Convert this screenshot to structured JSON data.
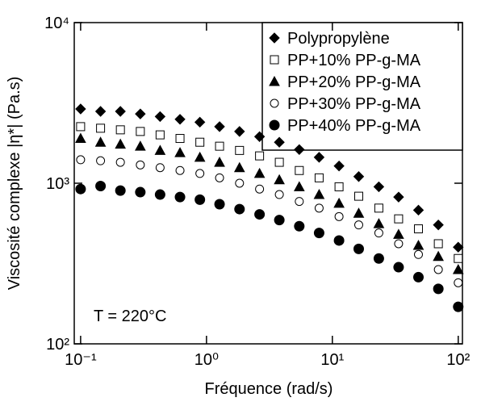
{
  "chart_data": {
    "type": "scatter",
    "x_label": "Fréquence (rad/s)",
    "y_label": "Viscosité complexe |η*| (Pa.s)",
    "annotation": "T = 220°C",
    "log_x": true,
    "log_y": true,
    "legend": "top-right",
    "x": [
      0.1,
      0.144,
      0.207,
      0.298,
      0.428,
      0.616,
      0.886,
      1.27,
      1.83,
      2.64,
      3.79,
      5.46,
      7.85,
      11.3,
      16.2,
      23.4,
      33.6,
      48.3,
      69.5,
      100
    ],
    "xlim": [
      0.089,
      108
    ],
    "ylim": [
      100,
      10000
    ],
    "xticks": [
      {
        "value": 0.1,
        "label": "10⁻¹"
      },
      {
        "value": 1,
        "label": "10⁰"
      },
      {
        "value": 10,
        "label": "10¹"
      },
      {
        "value": 100,
        "label": "10²"
      }
    ],
    "yticks": [
      {
        "value": 100,
        "label": "10²"
      },
      {
        "value": 1000,
        "label": "10³"
      },
      {
        "value": 10000,
        "label": "10⁴"
      }
    ],
    "series": [
      {
        "name": "Polypropylène",
        "color": "#000000",
        "marker": "diamond",
        "filled": true,
        "values": [
          2900,
          2800,
          2800,
          2700,
          2600,
          2500,
          2400,
          2250,
          2100,
          1950,
          1800,
          1620,
          1450,
          1280,
          1100,
          950,
          820,
          680,
          550,
          400
        ]
      },
      {
        "name": "PP+10% PP-g-MA",
        "color": "#000000",
        "marker": "square",
        "filled": false,
        "values": [
          2250,
          2200,
          2150,
          2100,
          2000,
          1900,
          1800,
          1700,
          1600,
          1480,
          1350,
          1200,
          1080,
          950,
          830,
          700,
          600,
          520,
          420,
          340
        ]
      },
      {
        "name": "PP+20% PP-g-MA",
        "color": "#000000",
        "marker": "triangle",
        "filled": true,
        "values": [
          1900,
          1800,
          1750,
          1700,
          1600,
          1550,
          1450,
          1350,
          1250,
          1150,
          1050,
          950,
          850,
          750,
          650,
          560,
          480,
          410,
          350,
          290
        ]
      },
      {
        "name": "PP+30% PP-g-MA",
        "color": "#000000",
        "marker": "circle",
        "filled": false,
        "values": [
          1400,
          1380,
          1350,
          1300,
          1250,
          1200,
          1150,
          1080,
          1000,
          920,
          850,
          770,
          700,
          620,
          550,
          490,
          420,
          360,
          290,
          240
        ]
      },
      {
        "name": "PP+40% PP-g-MA",
        "color": "#000000",
        "marker": "circle",
        "filled": true,
        "values": [
          920,
          960,
          900,
          880,
          850,
          820,
          790,
          740,
          690,
          640,
          590,
          540,
          490,
          440,
          390,
          340,
          300,
          260,
          220,
          170
        ]
      }
    ]
  }
}
